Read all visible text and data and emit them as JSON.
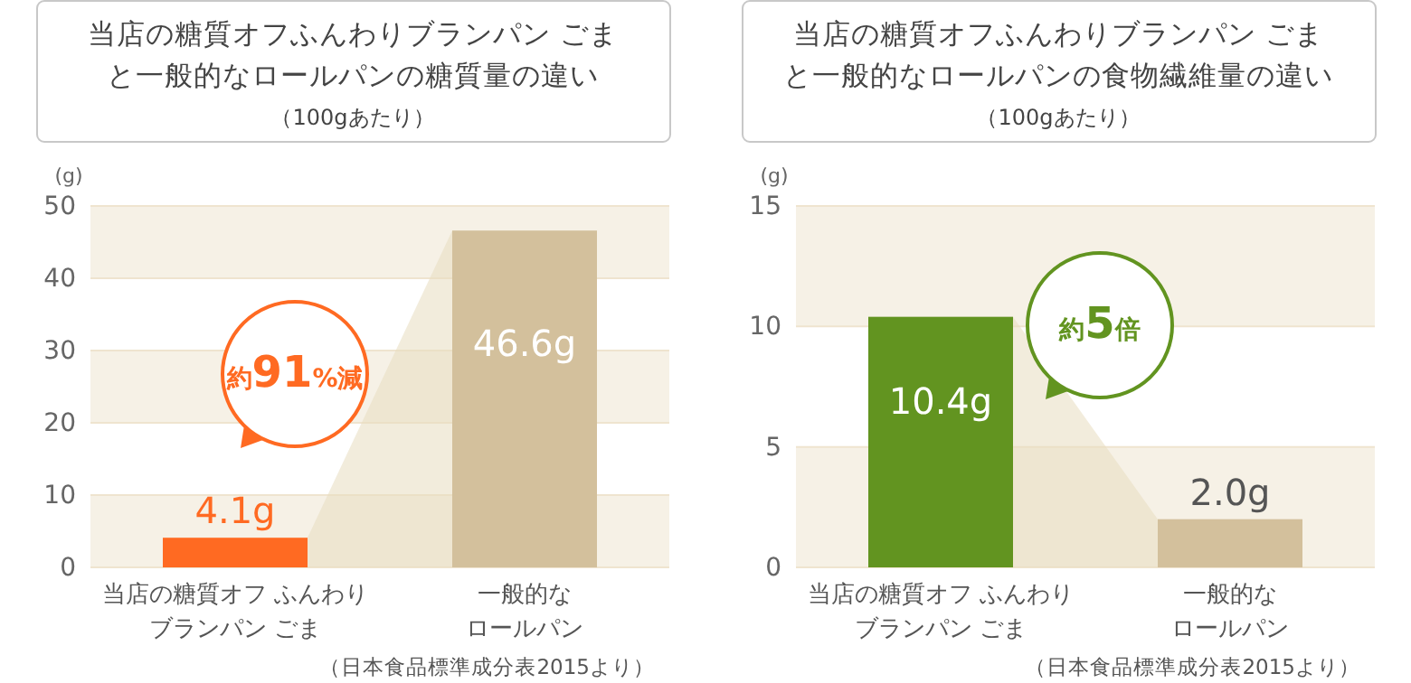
{
  "chart_data": [
    {
      "type": "bar",
      "title": "当店の糖質オフふんわりブランパン ごまと一般的なロールパンの糖質量の違い",
      "subtitle": "（100gあたり）",
      "ylabel": "(g)",
      "categories": [
        "当店の糖質オフ ふんわりブランパン ごま",
        "一般的なロールパン"
      ],
      "values": [
        4.1,
        46.6
      ],
      "colors": [
        "#ff6a22",
        "#d3c09c"
      ],
      "value_labels": [
        "4.1g",
        "46.6g"
      ],
      "ylim": [
        0,
        50
      ],
      "yticks": [
        0,
        10,
        20,
        30,
        40,
        50
      ],
      "grid": "y",
      "annotations": [
        "約91%減",
        "（日本食品標準成分表2015より）"
      ]
    },
    {
      "type": "bar",
      "title": "当店の糖質オフふんわりブランパン ごまと一般的なロールパンの食物繊維量の違い",
      "subtitle": "（100gあたり）",
      "ylabel": "(g)",
      "categories": [
        "当店の糖質オフ ふんわりブランパン ごま",
        "一般的なロールパン"
      ],
      "values": [
        10.4,
        2.0
      ],
      "colors": [
        "#629420",
        "#d3c09c"
      ],
      "value_labels": [
        "10.4g",
        "2.0g"
      ],
      "ylim": [
        0,
        15
      ],
      "yticks": [
        0,
        5,
        10,
        15
      ],
      "grid": "y",
      "annotations": [
        "約5倍",
        "（日本食品標準成分表2015より）"
      ]
    }
  ]
}
